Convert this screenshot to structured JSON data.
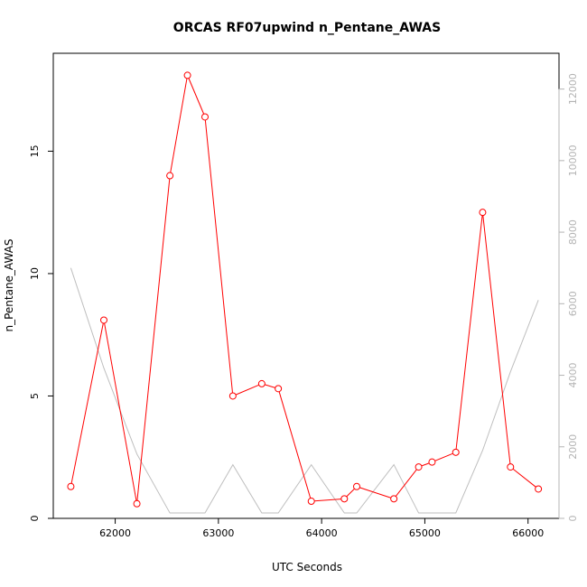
{
  "chart_data": {
    "type": "line",
    "title": "ORCAS RF07upwind n_Pentane_AWAS",
    "xlabel": "UTC Seconds",
    "ylabel": "n_Pentane_AWAS",
    "xlim": [
      61400,
      66300
    ],
    "ylim": [
      0,
      19
    ],
    "x_ticks": [
      62000,
      63000,
      64000,
      65000,
      66000
    ],
    "y_ticks": [
      0,
      5,
      10,
      15
    ],
    "y2lim": [
      0,
      13000
    ],
    "y2_ticks": [
      0,
      2000,
      4000,
      6000,
      8000,
      10000,
      12000
    ],
    "grid": false,
    "legend": "none",
    "series": [
      {
        "axis": "left",
        "color": "#ff0000",
        "marker": "open-circle",
        "x": [
          61570,
          61890,
          62210,
          62530,
          62700,
          62870,
          63140,
          63420,
          63580,
          63900,
          64220,
          64340,
          64700,
          64940,
          65070,
          65300,
          65560,
          65830,
          66100
        ],
        "values": [
          1.3,
          8.1,
          0.6,
          14.0,
          18.1,
          16.4,
          5.0,
          5.5,
          5.3,
          0.7,
          0.8,
          1.3,
          0.8,
          2.1,
          2.3,
          2.7,
          12.5,
          2.1,
          1.2
        ]
      },
      {
        "axis": "right",
        "color": "#bebebe",
        "marker": "none",
        "x": [
          61570,
          61890,
          62210,
          62530,
          62870,
          63140,
          63420,
          63580,
          63900,
          64220,
          64340,
          64700,
          64940,
          65300,
          65560,
          65830,
          66100
        ],
        "values": [
          7000,
          4200,
          1800,
          150,
          150,
          1500,
          150,
          150,
          1500,
          150,
          150,
          1500,
          150,
          150,
          1900,
          4100,
          6100
        ]
      }
    ]
  }
}
